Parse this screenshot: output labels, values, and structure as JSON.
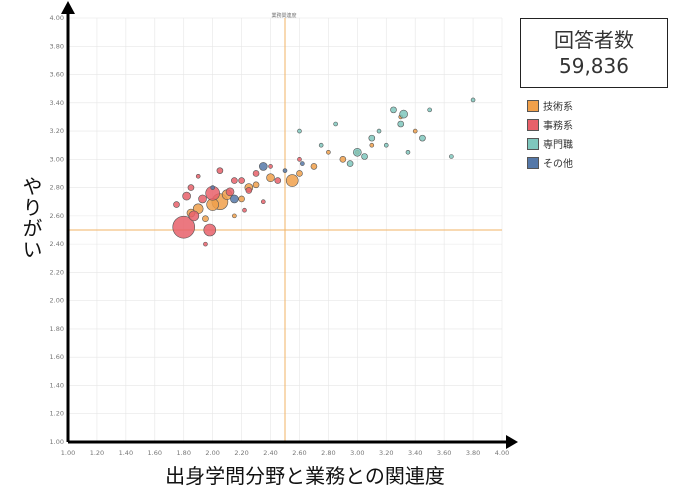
{
  "summary": {
    "title": "回答者数",
    "value": "59,836"
  },
  "axis_labels": {
    "y": "やりがい",
    "x": "出身学問分野と業務との関連度"
  },
  "colors": {
    "tech": "#f0a04b",
    "office": "#e8606a",
    "specialist": "#7fc7bd",
    "other": "#5578a8",
    "axis": "#000000",
    "refline": "#f2b366",
    "grid": "#e6e6e6"
  },
  "chart_data": {
    "type": "scatter",
    "title": "業務関連度",
    "xlabel": "出身学問分野と業務との関連度",
    "ylabel": "やりがい",
    "xlim": [
      1.0,
      4.0
    ],
    "ylim": [
      1.0,
      4.0
    ],
    "x_ticks": [
      "1.00",
      "1.20",
      "1.40",
      "1.60",
      "1.80",
      "2.00",
      "2.20",
      "2.40",
      "2.60",
      "2.80",
      "3.00",
      "3.20",
      "3.40",
      "3.60",
      "3.80",
      "4.00"
    ],
    "y_ticks": [
      "1.00",
      "1.20",
      "1.40",
      "1.60",
      "1.80",
      "2.00",
      "2.20",
      "2.40",
      "2.60",
      "2.80",
      "3.00",
      "3.20",
      "3.40",
      "3.60",
      "3.80",
      "4.00"
    ],
    "reference_lines": {
      "x": 2.5,
      "y": 2.5
    },
    "grid": true,
    "legend_position": "right",
    "series": [
      {
        "name": "技術系",
        "key": "tech",
        "points": [
          {
            "x": 2.55,
            "y": 2.85,
            "size": 6
          },
          {
            "x": 2.05,
            "y": 2.7,
            "size": 8
          },
          {
            "x": 2.0,
            "y": 2.68,
            "size": 6
          },
          {
            "x": 1.9,
            "y": 2.65,
            "size": 5
          },
          {
            "x": 2.1,
            "y": 2.75,
            "size": 5
          },
          {
            "x": 2.25,
            "y": 2.8,
            "size": 4
          },
          {
            "x": 1.85,
            "y": 2.62,
            "size": 4
          },
          {
            "x": 2.4,
            "y": 2.87,
            "size": 4
          },
          {
            "x": 2.6,
            "y": 2.9,
            "size": 3
          },
          {
            "x": 2.7,
            "y": 2.95,
            "size": 3
          },
          {
            "x": 2.9,
            "y": 3.0,
            "size": 3
          },
          {
            "x": 3.0,
            "y": 3.05,
            "size": 2
          },
          {
            "x": 2.2,
            "y": 2.72,
            "size": 3
          },
          {
            "x": 2.3,
            "y": 2.82,
            "size": 3
          },
          {
            "x": 1.95,
            "y": 2.58,
            "size": 3
          },
          {
            "x": 3.3,
            "y": 3.3,
            "size": 2
          },
          {
            "x": 3.1,
            "y": 3.1,
            "size": 2
          },
          {
            "x": 2.15,
            "y": 2.6,
            "size": 2
          },
          {
            "x": 3.4,
            "y": 3.2,
            "size": 2
          },
          {
            "x": 2.8,
            "y": 3.05,
            "size": 2
          }
        ]
      },
      {
        "name": "事務系",
        "key": "office",
        "points": [
          {
            "x": 1.8,
            "y": 2.52,
            "size": 11
          },
          {
            "x": 1.98,
            "y": 2.5,
            "size": 6
          },
          {
            "x": 2.0,
            "y": 2.76,
            "size": 7
          },
          {
            "x": 1.87,
            "y": 2.6,
            "size": 5
          },
          {
            "x": 1.93,
            "y": 2.72,
            "size": 4
          },
          {
            "x": 2.12,
            "y": 2.77,
            "size": 4
          },
          {
            "x": 2.25,
            "y": 2.78,
            "size": 3
          },
          {
            "x": 2.2,
            "y": 2.85,
            "size": 3
          },
          {
            "x": 2.3,
            "y": 2.9,
            "size": 3
          },
          {
            "x": 2.45,
            "y": 2.85,
            "size": 3
          },
          {
            "x": 1.85,
            "y": 2.8,
            "size": 3
          },
          {
            "x": 1.9,
            "y": 2.88,
            "size": 2
          },
          {
            "x": 2.05,
            "y": 2.92,
            "size": 3
          },
          {
            "x": 2.15,
            "y": 2.85,
            "size": 3
          },
          {
            "x": 2.35,
            "y": 2.7,
            "size": 2
          },
          {
            "x": 1.75,
            "y": 2.68,
            "size": 3
          },
          {
            "x": 1.82,
            "y": 2.74,
            "size": 4
          },
          {
            "x": 2.22,
            "y": 2.64,
            "size": 2
          },
          {
            "x": 2.6,
            "y": 3.0,
            "size": 2
          },
          {
            "x": 1.95,
            "y": 2.4,
            "size": 2
          },
          {
            "x": 2.4,
            "y": 2.95,
            "size": 2
          }
        ]
      },
      {
        "name": "専門職",
        "key": "specialist",
        "points": [
          {
            "x": 3.32,
            "y": 3.32,
            "size": 4
          },
          {
            "x": 3.25,
            "y": 3.35,
            "size": 3
          },
          {
            "x": 3.45,
            "y": 3.15,
            "size": 3
          },
          {
            "x": 3.3,
            "y": 3.25,
            "size": 3
          },
          {
            "x": 3.1,
            "y": 3.15,
            "size": 3
          },
          {
            "x": 3.0,
            "y": 3.05,
            "size": 4
          },
          {
            "x": 3.05,
            "y": 3.02,
            "size": 3
          },
          {
            "x": 2.95,
            "y": 2.97,
            "size": 3
          },
          {
            "x": 3.15,
            "y": 3.2,
            "size": 2
          },
          {
            "x": 3.5,
            "y": 3.35,
            "size": 2
          },
          {
            "x": 3.65,
            "y": 3.02,
            "size": 2
          },
          {
            "x": 3.8,
            "y": 3.42,
            "size": 2
          },
          {
            "x": 2.6,
            "y": 3.2,
            "size": 2
          },
          {
            "x": 2.75,
            "y": 3.1,
            "size": 2
          },
          {
            "x": 3.2,
            "y": 3.1,
            "size": 2
          },
          {
            "x": 3.35,
            "y": 3.05,
            "size": 2
          },
          {
            "x": 2.85,
            "y": 3.25,
            "size": 2
          }
        ]
      },
      {
        "name": "その他",
        "key": "other",
        "points": [
          {
            "x": 2.15,
            "y": 2.72,
            "size": 4
          },
          {
            "x": 2.35,
            "y": 2.95,
            "size": 4
          },
          {
            "x": 2.0,
            "y": 2.8,
            "size": 2
          },
          {
            "x": 2.5,
            "y": 2.92,
            "size": 2
          },
          {
            "x": 2.62,
            "y": 2.97,
            "size": 2
          }
        ]
      }
    ]
  }
}
